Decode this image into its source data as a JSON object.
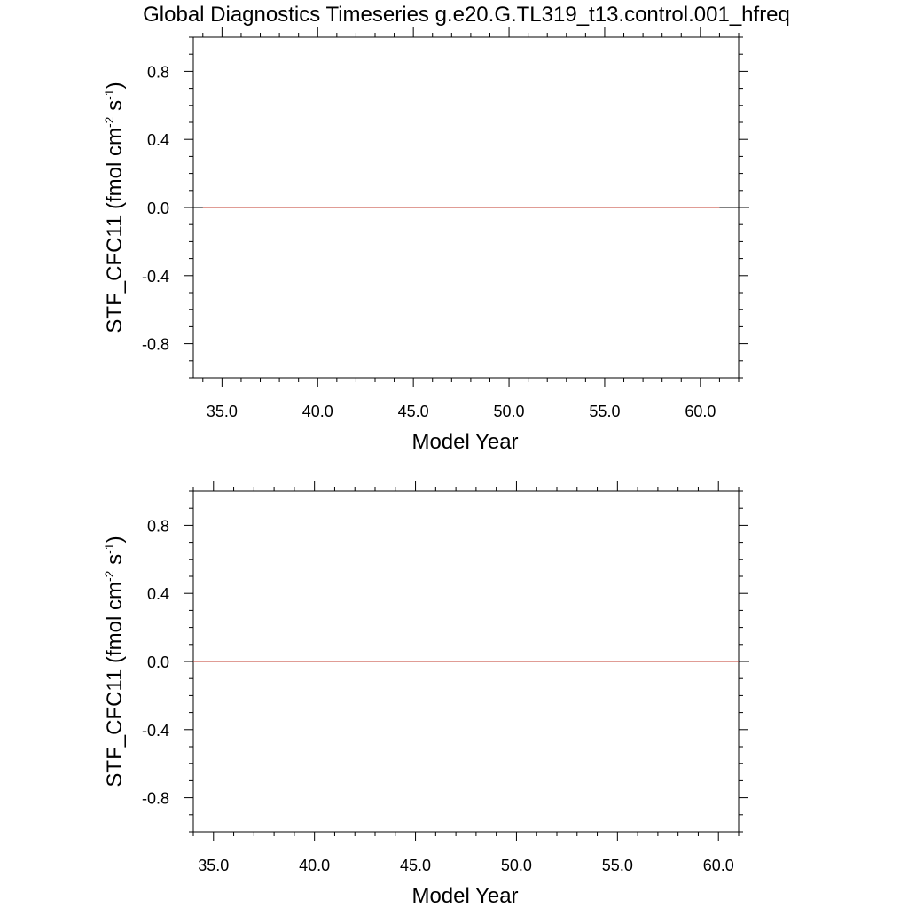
{
  "title": "Global Diagnostics Timeseries g.e20.G.TL319_t13.control.001_hfreq",
  "chart_data": [
    {
      "type": "line",
      "title": "Global Diagnostics Timeseries g.e20.G.TL319_t13.control.001_hfreq",
      "xlabel": "Model Year",
      "ylabel": {
        "base": "STF_CFC11  (fmol cm",
        "sup1": "-2",
        "mid": " s",
        "sup2": "-1",
        "end": ")"
      },
      "xlim": [
        33.5,
        62.0
      ],
      "ylim": [
        -1.0,
        1.0
      ],
      "x_ticks": [
        35.0,
        40.0,
        45.0,
        50.0,
        55.0,
        60.0
      ],
      "x_tick_labels": [
        "35.0",
        "40.0",
        "45.0",
        "50.0",
        "55.0",
        "60.0"
      ],
      "y_ticks": [
        0.8,
        0.4,
        0.0,
        -0.4,
        -0.8
      ],
      "y_tick_labels": [
        "0.8",
        "0.4",
        "0.0",
        "-0.4",
        "-0.8"
      ],
      "grid": false,
      "reference_line": 0.0,
      "series": [
        {
          "color": "#c0392b",
          "x": [
            34.0,
            61.0
          ],
          "y": [
            0.0,
            0.0
          ]
        }
      ]
    },
    {
      "type": "line",
      "xlabel": "Model Year",
      "ylabel": {
        "base": "STF_CFC11  (fmol cm",
        "sup1": "-2",
        "mid": " s",
        "sup2": "-1",
        "end": ")"
      },
      "xlim": [
        34.0,
        61.0
      ],
      "ylim": [
        -1.0,
        1.0
      ],
      "x_ticks": [
        35.0,
        40.0,
        45.0,
        50.0,
        55.0,
        60.0
      ],
      "x_tick_labels": [
        "35.0",
        "40.0",
        "45.0",
        "50.0",
        "55.0",
        "60.0"
      ],
      "y_ticks": [
        0.8,
        0.4,
        0.0,
        -0.4,
        -0.8
      ],
      "y_tick_labels": [
        "0.8",
        "0.4",
        "0.0",
        "-0.4",
        "-0.8"
      ],
      "grid": false,
      "reference_line": 0.0,
      "series": [
        {
          "color": "#c0392b",
          "x": [
            34.0,
            61.0
          ],
          "y": [
            0.0,
            0.0
          ]
        }
      ]
    }
  ]
}
